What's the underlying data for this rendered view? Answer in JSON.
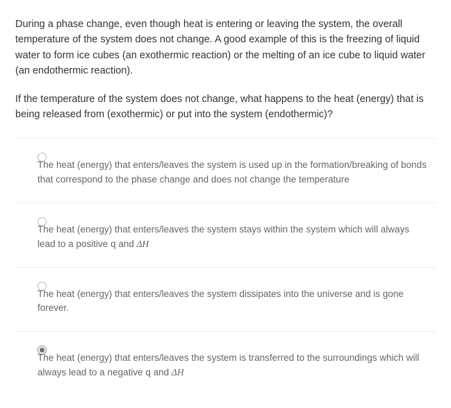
{
  "question": {
    "para1": "During a phase change, even though heat is entering or leaving the system, the overall temperature of the system does not change. A good example of this is the freezing of liquid water to form ice cubes (an exothermic reaction) or the melting of an ice cube to liquid water (an endothermic reaction).",
    "para2": "If the temperature of the system does not change, what happens to the heat (energy) that is being released from (exothermic) or put into the system (endothermic)?"
  },
  "options": [
    {
      "text": "The heat (energy) that enters/leaves the system is used up in the formation/breaking of bonds that correspond to the phase change and does not change the temperature",
      "selected": false,
      "has_math": false
    },
    {
      "text": "The heat (energy) that enters/leaves the system stays within the system which will always lead to a positive q and ",
      "math_suffix": "ΔH",
      "selected": false,
      "has_math": true
    },
    {
      "text": "The heat (energy) that enters/leaves the system dissipates into the universe and is gone forever.",
      "selected": false,
      "has_math": false
    },
    {
      "text": "The heat (energy) that enters/leaves the system is transferred to the surroundings which will always lead to a negative q and ",
      "math_suffix": "ΔH",
      "selected": true,
      "has_math": true
    }
  ],
  "colors": {
    "body_text": "#333333",
    "option_text": "#666666",
    "divider": "#ededed",
    "radio_border": "#b8b8b8",
    "radio_fill": "#6e6e6e",
    "background": "#ffffff"
  },
  "typography": {
    "question_fontsize": 14.5,
    "option_fontsize": 13.5,
    "line_height": 1.55
  }
}
